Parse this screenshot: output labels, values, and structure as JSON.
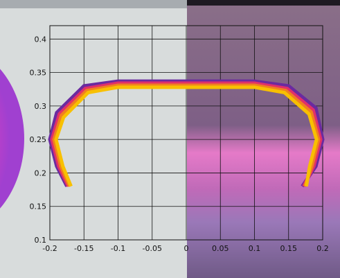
{
  "chart_data": {
    "type": "line",
    "xlim": [
      -0.2,
      0.2
    ],
    "ylim": [
      0.1,
      0.42
    ],
    "xticks": [
      -0.2,
      -0.15,
      -0.1,
      -0.05,
      0,
      0.05,
      0.1,
      0.15,
      0.2
    ],
    "yticks": [
      0.1,
      0.15,
      0.2,
      0.25,
      0.3,
      0.35,
      0.4
    ],
    "grid": true,
    "series": [
      {
        "color": "#6a2aa0",
        "x": [
          -0.175,
          -0.19,
          -0.2,
          -0.19,
          -0.15,
          -0.1,
          0,
          0.1,
          0.15,
          0.19,
          0.2,
          0.19,
          0.17
        ],
        "values": [
          0.18,
          0.21,
          0.25,
          0.29,
          0.33,
          0.337,
          0.337,
          0.337,
          0.33,
          0.297,
          0.25,
          0.21,
          0.18
        ]
      },
      {
        "color": "#e0306a",
        "x": [
          -0.173,
          -0.187,
          -0.197,
          -0.186,
          -0.148,
          -0.1,
          0,
          0.1,
          0.148,
          0.186,
          0.197,
          0.187,
          0.172
        ],
        "values": [
          0.18,
          0.21,
          0.25,
          0.288,
          0.326,
          0.334,
          0.334,
          0.334,
          0.326,
          0.294,
          0.25,
          0.21,
          0.18
        ]
      },
      {
        "color": "#f08020",
        "x": [
          -0.171,
          -0.184,
          -0.194,
          -0.183,
          -0.146,
          -0.1,
          0,
          0.1,
          0.146,
          0.183,
          0.194,
          0.184,
          0.174
        ],
        "values": [
          0.18,
          0.21,
          0.25,
          0.286,
          0.323,
          0.331,
          0.331,
          0.331,
          0.323,
          0.291,
          0.25,
          0.21,
          0.18
        ]
      },
      {
        "color": "#f8c000",
        "x": [
          -0.169,
          -0.181,
          -0.191,
          -0.18,
          -0.144,
          -0.1,
          0,
          0.1,
          0.144,
          0.18,
          0.191,
          0.181,
          0.176
        ],
        "values": [
          0.18,
          0.21,
          0.25,
          0.283,
          0.32,
          0.328,
          0.328,
          0.328,
          0.32,
          0.288,
          0.25,
          0.21,
          0.18
        ]
      }
    ]
  }
}
